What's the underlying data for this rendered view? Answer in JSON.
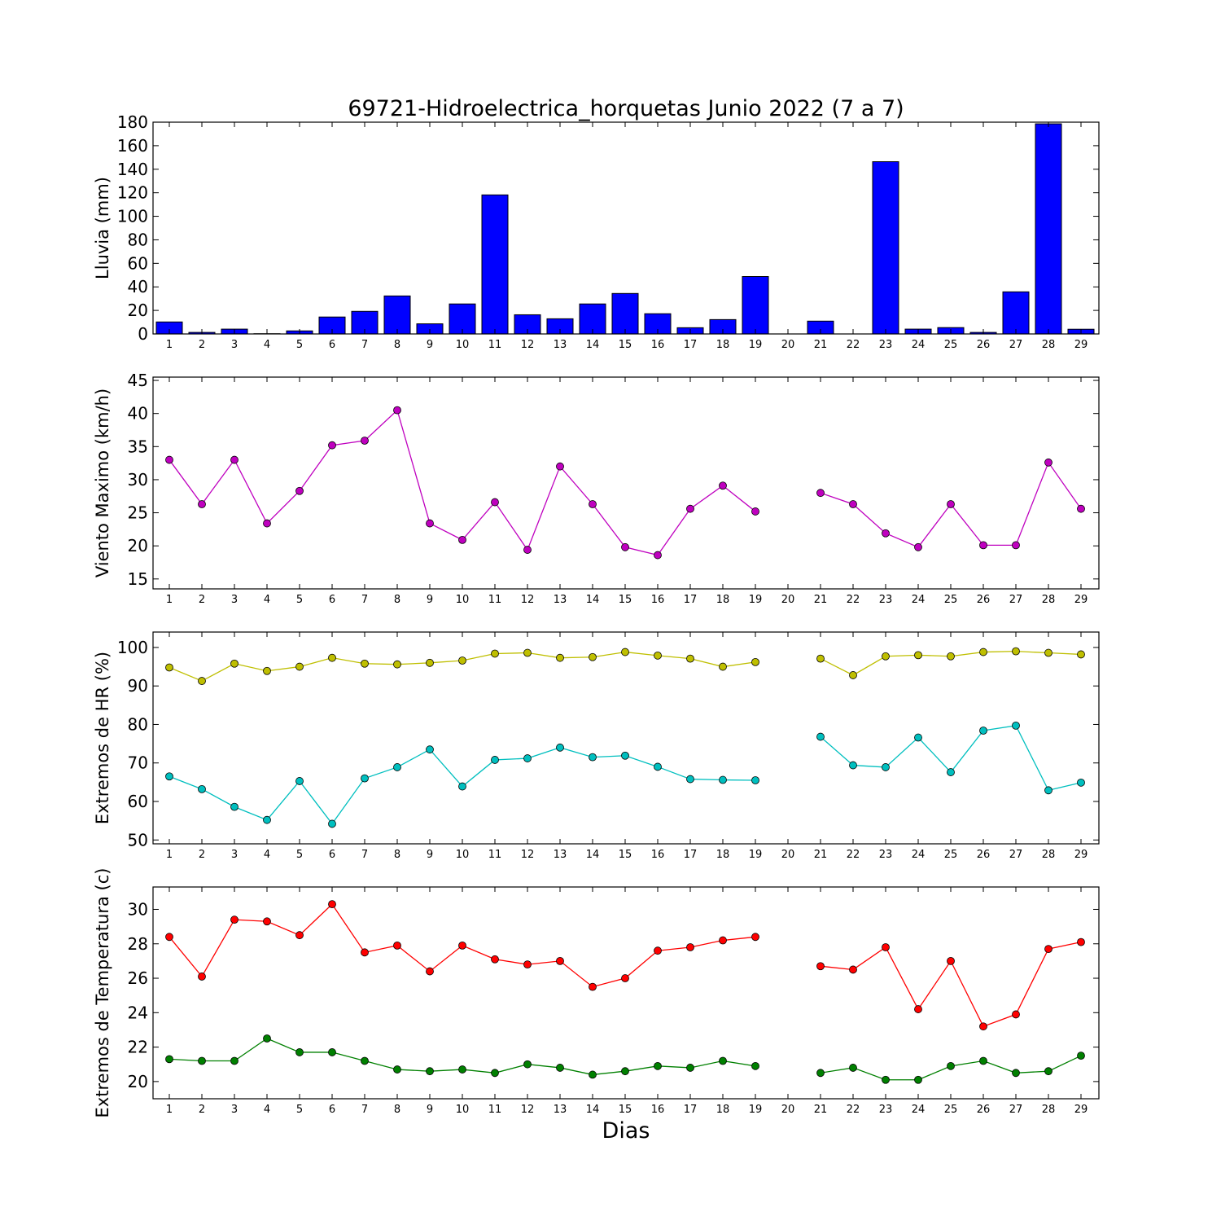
{
  "chart_data": [
    {
      "type": "bar",
      "title": "69721-Hidroelectrica_horquetas Junio 2022  (7 a 7)",
      "ylabel": "Lluvia (mm)",
      "xlabel": "",
      "ylim": [
        0,
        180
      ],
      "yticks": [
        0,
        20,
        40,
        60,
        80,
        100,
        120,
        140,
        160,
        180
      ],
      "categories": [
        "1",
        "2",
        "3",
        "4",
        "5",
        "6",
        "7",
        "8",
        "9",
        "10",
        "11",
        "12",
        "13",
        "14",
        "15",
        "16",
        "17",
        "18",
        "19",
        "20",
        "21",
        "22",
        "23",
        "24",
        "25",
        "26",
        "27",
        "28",
        "29"
      ],
      "color": "#0000ff",
      "values": [
        10.2,
        1.3,
        4.1,
        0.2,
        2.6,
        14.4,
        19.2,
        32.3,
        8.6,
        25.5,
        118.2,
        16.3,
        12.9,
        25.5,
        34.4,
        17.2,
        5.3,
        12.2,
        48.8,
        0,
        10.9,
        0,
        146.4,
        4.1,
        5.4,
        1.3,
        35.8,
        178.6,
        4.0
      ]
    },
    {
      "type": "line",
      "title": "",
      "ylabel": "Viento Maximo (km/h)",
      "xlabel": "",
      "ylim": [
        13.5,
        45.5
      ],
      "yticks": [
        15,
        20,
        25,
        30,
        35,
        40,
        45
      ],
      "categories": [
        "1",
        "2",
        "3",
        "4",
        "5",
        "6",
        "7",
        "8",
        "9",
        "10",
        "11",
        "12",
        "13",
        "14",
        "15",
        "16",
        "17",
        "18",
        "19",
        "20",
        "21",
        "22",
        "23",
        "24",
        "25",
        "26",
        "27",
        "28",
        "29"
      ],
      "series": [
        {
          "color": "#bf00bf",
          "values": [
            33.0,
            26.3,
            33.0,
            23.4,
            28.3,
            35.2,
            35.9,
            40.5,
            23.4,
            20.9,
            26.6,
            19.4,
            32.0,
            26.3,
            19.8,
            18.6,
            25.6,
            29.1,
            25.2,
            null,
            28.0,
            26.3,
            21.9,
            19.8,
            26.3,
            20.1,
            20.1,
            32.6,
            25.6
          ]
        }
      ]
    },
    {
      "type": "line",
      "title": "",
      "ylabel": "Extremos de HR (%)",
      "xlabel": "",
      "ylim": [
        49,
        104
      ],
      "yticks": [
        50,
        60,
        70,
        80,
        90,
        100
      ],
      "categories": [
        "1",
        "2",
        "3",
        "4",
        "5",
        "6",
        "7",
        "8",
        "9",
        "10",
        "11",
        "12",
        "13",
        "14",
        "15",
        "16",
        "17",
        "18",
        "19",
        "20",
        "21",
        "22",
        "23",
        "24",
        "25",
        "26",
        "27",
        "28",
        "29"
      ],
      "series": [
        {
          "color": "#bfbf00",
          "values": [
            94.8,
            91.3,
            95.8,
            93.9,
            95.0,
            97.3,
            95.8,
            95.6,
            96.0,
            96.6,
            98.4,
            98.6,
            97.3,
            97.5,
            98.8,
            97.9,
            97.1,
            95.0,
            96.2,
            null,
            97.1,
            92.8,
            97.7,
            98.0,
            97.7,
            98.8,
            99.0,
            98.6,
            98.2
          ]
        },
        {
          "color": "#00bfbf",
          "values": [
            66.5,
            63.2,
            58.6,
            55.2,
            65.3,
            54.2,
            66.0,
            68.9,
            73.5,
            63.9,
            70.8,
            71.2,
            74.0,
            71.5,
            71.9,
            69.0,
            65.8,
            65.6,
            65.5,
            null,
            76.8,
            69.4,
            68.9,
            76.6,
            67.6,
            78.4,
            79.7,
            62.9,
            64.9
          ]
        }
      ]
    },
    {
      "type": "line",
      "title": "",
      "ylabel": "Extremos de Temperatura (c)",
      "xlabel": "Dias",
      "ylim": [
        19,
        31.3
      ],
      "yticks": [
        20,
        22,
        24,
        26,
        28,
        30
      ],
      "categories": [
        "1",
        "2",
        "3",
        "4",
        "5",
        "6",
        "7",
        "8",
        "9",
        "10",
        "11",
        "12",
        "13",
        "14",
        "15",
        "16",
        "17",
        "18",
        "19",
        "20",
        "21",
        "22",
        "23",
        "24",
        "25",
        "26",
        "27",
        "28",
        "29"
      ],
      "series": [
        {
          "color": "#ff0000",
          "values": [
            28.4,
            26.1,
            29.4,
            29.3,
            28.5,
            30.3,
            27.5,
            27.9,
            26.4,
            27.9,
            27.1,
            26.8,
            27.0,
            25.5,
            26.0,
            27.6,
            27.8,
            28.2,
            28.4,
            null,
            26.7,
            26.5,
            27.8,
            24.2,
            27.0,
            23.2,
            23.9,
            27.7,
            28.1
          ]
        },
        {
          "color": "#008000",
          "values": [
            21.3,
            21.2,
            21.2,
            22.5,
            21.7,
            21.7,
            21.2,
            20.7,
            20.6,
            20.7,
            20.5,
            21.0,
            20.8,
            20.4,
            20.6,
            20.9,
            20.8,
            21.2,
            20.9,
            null,
            20.5,
            20.8,
            20.1,
            20.1,
            20.9,
            21.2,
            20.5,
            20.6,
            21.5
          ]
        }
      ]
    }
  ]
}
